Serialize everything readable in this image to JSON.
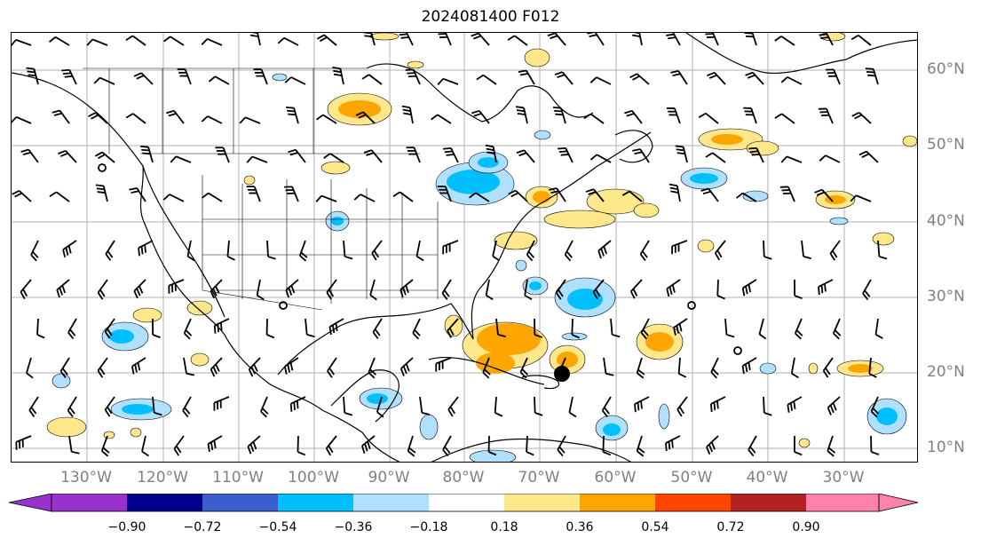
{
  "title": "2024081400 F012",
  "lon_labels": [
    "130°W",
    "120°W",
    "110°W",
    "100°W",
    "90°W",
    "80°W",
    "70°W",
    "60°W",
    "50°W",
    "40°W",
    "30°W"
  ],
  "lat_labels": [
    "60°N",
    "50°N",
    "40°N",
    "30°N",
    "20°N",
    "10°N"
  ],
  "colorbar": {
    "tick_labels": [
      "−0.90",
      "−0.72",
      "−0.54",
      "−0.36",
      "−0.18",
      "0.18",
      "0.36",
      "0.54",
      "0.72",
      "0.90"
    ],
    "colors": [
      "#9932cc",
      "#00008b",
      "#3a5fcd",
      "#00bfff",
      "#b0e0ff",
      "#ffffff",
      "#ffe88c",
      "#ffa500",
      "#ff4500",
      "#b22222",
      "#ff82ab"
    ]
  },
  "map_colors": {
    "pos_low": "#ffe88c",
    "pos_mid": "#ffa500",
    "neg_low": "#b0e0ff",
    "neg_mid": "#00bfff",
    "grid": "#b0b0b0",
    "coast": "#000000"
  }
}
